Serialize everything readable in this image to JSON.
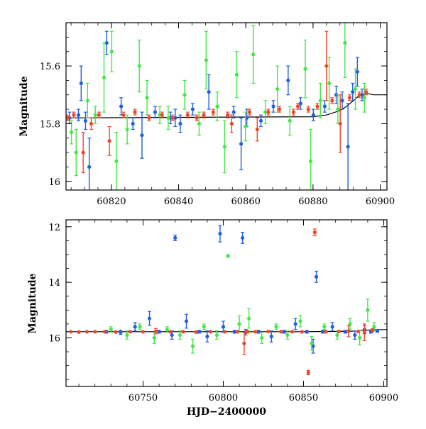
{
  "colors": {
    "blue": "#1f5fe0",
    "red": "#f0452d",
    "green": "#45e64a",
    "model": "#000000"
  },
  "chart_data": [
    {
      "type": "scatter",
      "panel": "top",
      "xlabel": "",
      "ylabel": "Magnitude",
      "xlim": [
        60806.5,
        60902
      ],
      "ylim": [
        16.03,
        15.45
      ],
      "y_inverted": true,
      "xticks": [
        60820,
        60840,
        60860,
        60880,
        60900
      ],
      "yticks": [
        15.6,
        15.8,
        16
      ],
      "ytick_labels": [
        "15.6",
        "15.8",
        "16"
      ],
      "model_curve": {
        "x": [
          60806.5,
          60880,
          60884,
          60888,
          60890,
          60892,
          60894,
          60896,
          60898,
          60902
        ],
        "y": [
          15.78,
          15.776,
          15.77,
          15.755,
          15.74,
          15.72,
          15.7,
          15.695,
          15.7,
          15.7
        ]
      },
      "series": [
        {
          "color": "blue",
          "x": [
            60807.5,
            60810.2,
            60811.0,
            60812.3,
            60813.4,
            60818.6,
            60822.9,
            60826.4,
            60829.1,
            60833.0,
            60837.6,
            60839.0,
            60840.5,
            60844.2,
            60849.0,
            60856.4,
            60858.6,
            60860.3,
            60864.5,
            60868.2,
            60872.6,
            60876.3,
            60880.1,
            60883.5,
            60886.9,
            60888.7,
            60890.4,
            60891.8,
            60893.2,
            60894.6
          ],
          "y": [
            15.78,
            15.77,
            15.66,
            15.79,
            15.95,
            15.52,
            15.74,
            15.8,
            15.84,
            15.76,
            15.78,
            15.78,
            15.8,
            15.75,
            15.69,
            15.76,
            15.87,
            15.78,
            15.79,
            15.74,
            15.65,
            15.73,
            15.77,
            15.74,
            15.7,
            15.72,
            15.88,
            15.69,
            15.62,
            15.7
          ],
          "err": [
            0.02,
            0.02,
            0.06,
            0.03,
            0.1,
            0.04,
            0.03,
            0.02,
            0.08,
            0.02,
            0.02,
            0.03,
            0.03,
            0.02,
            0.06,
            0.02,
            0.09,
            0.03,
            0.02,
            0.02,
            0.05,
            0.02,
            0.02,
            0.02,
            0.03,
            0.03,
            0.15,
            0.03,
            0.05,
            0.02
          ]
        },
        {
          "color": "green",
          "x": [
            60808.1,
            60809.5,
            60812.9,
            60815.2,
            60817.8,
            60820.1,
            60821.5,
            60824.7,
            60828.3,
            60830.6,
            60834.4,
            60836.9,
            60841.8,
            60846.1,
            60848.2,
            60851.5,
            60853.7,
            60857.3,
            60859.9,
            60862.2,
            60865.8,
            60869.4,
            60873.1,
            60877.7,
            60879.3,
            60882.2,
            60884.8,
            60887.4,
            60889.5,
            60892.6,
            60895.3
          ],
          "y": [
            15.83,
            15.9,
            15.72,
            15.77,
            15.64,
            15.55,
            15.93,
            15.82,
            15.6,
            15.71,
            15.77,
            15.78,
            15.7,
            15.8,
            15.58,
            15.74,
            15.88,
            15.63,
            15.81,
            15.56,
            15.76,
            15.68,
            15.79,
            15.61,
            15.93,
            15.72,
            15.66,
            15.75,
            15.52,
            15.68,
            15.71
          ],
          "err": [
            0.04,
            0.08,
            0.06,
            0.03,
            0.12,
            0.07,
            0.1,
            0.05,
            0.09,
            0.06,
            0.03,
            0.04,
            0.05,
            0.04,
            0.1,
            0.05,
            0.09,
            0.08,
            0.05,
            0.1,
            0.04,
            0.08,
            0.05,
            0.1,
            0.11,
            0.06,
            0.09,
            0.05,
            0.12,
            0.07,
            0.05
          ]
        },
        {
          "color": "red",
          "x": [
            60807.0,
            60808.8,
            60811.6,
            60814.0,
            60816.3,
            60819.4,
            60823.6,
            60827.0,
            60831.2,
            60835.1,
            60838.2,
            60842.7,
            60845.4,
            60847.5,
            60850.3,
            60854.6,
            60855.8,
            60861.1,
            60863.4,
            60866.7,
            60870.0,
            60874.2,
            60875.5,
            60878.6,
            60881.3,
            60884.0,
            60885.7,
            60888.1,
            60890.9,
            60893.8,
            60895.8
          ],
          "y": [
            15.78,
            15.77,
            15.9,
            15.8,
            15.77,
            15.86,
            15.77,
            15.76,
            15.78,
            15.77,
            15.78,
            15.77,
            15.78,
            15.77,
            15.76,
            15.77,
            15.8,
            15.76,
            15.82,
            15.76,
            15.75,
            15.76,
            15.74,
            15.75,
            15.74,
            15.6,
            15.72,
            15.8,
            15.71,
            15.7,
            15.69
          ],
          "err": [
            0.01,
            0.01,
            0.07,
            0.02,
            0.01,
            0.05,
            0.01,
            0.01,
            0.01,
            0.01,
            0.01,
            0.01,
            0.01,
            0.01,
            0.01,
            0.01,
            0.03,
            0.01,
            0.04,
            0.01,
            0.01,
            0.01,
            0.01,
            0.01,
            0.01,
            0.12,
            0.01,
            0.1,
            0.01,
            0.01,
            0.01
          ]
        }
      ]
    },
    {
      "type": "scatter",
      "panel": "bottom",
      "xlabel": "HJD−2400000",
      "ylabel": "Magnitude",
      "xlim": [
        60702,
        60902
      ],
      "ylim": [
        17.75,
        11.75
      ],
      "y_inverted": true,
      "xticks": [
        60750,
        60800,
        60850,
        60900
      ],
      "yticks": [
        12,
        14,
        16
      ],
      "ytick_labels": [
        "12",
        "14",
        "16"
      ],
      "model_curve": {
        "x": [
          60702,
          60850,
          60870,
          60880,
          60890,
          60902
        ],
        "y": [
          15.78,
          15.78,
          15.77,
          15.76,
          15.72,
          15.7
        ]
      },
      "series": [
        {
          "color": "blue",
          "x": [
            60727.0,
            60736.0,
            60745.0,
            60754.0,
            60760.0,
            60768.0,
            60770.0,
            60777.0,
            60785.0,
            60790.0,
            60798.0,
            60800.0,
            60807.0,
            60812.0,
            60814.0,
            60822.0,
            60830.0,
            60838.0,
            60845.0,
            60852.0,
            60856.0,
            60858.0,
            60862.0,
            60868.0,
            60876.0,
            60882.0,
            60888.0,
            60892.0,
            60896.0
          ],
          "y": [
            15.78,
            15.8,
            15.6,
            15.3,
            15.78,
            15.9,
            12.4,
            15.4,
            15.78,
            15.95,
            12.25,
            15.6,
            15.78,
            12.4,
            15.8,
            15.78,
            15.95,
            15.78,
            15.5,
            15.78,
            16.3,
            13.8,
            15.78,
            15.6,
            15.78,
            15.9,
            15.7,
            15.78,
            15.75
          ],
          "err": [
            0.05,
            0.08,
            0.15,
            0.25,
            0.05,
            0.15,
            0.1,
            0.25,
            0.05,
            0.2,
            0.3,
            0.2,
            0.05,
            0.2,
            0.1,
            0.05,
            0.2,
            0.05,
            0.2,
            0.05,
            0.25,
            0.2,
            0.05,
            0.15,
            0.05,
            0.15,
            0.15,
            0.05,
            0.05
          ]
        },
        {
          "color": "green",
          "x": [
            60730.0,
            60740.0,
            60748.0,
            60757.0,
            60765.0,
            60773.0,
            60781.0,
            60788.0,
            60796.0,
            60803.0,
            60810.0,
            60816.0,
            60824.0,
            60833.0,
            60840.0,
            60848.0,
            60855.0,
            60863.0,
            60871.0,
            60879.0,
            60885.0,
            60890.0,
            60894.0
          ],
          "y": [
            15.7,
            15.9,
            15.6,
            16.0,
            15.7,
            15.9,
            16.3,
            15.6,
            15.9,
            13.05,
            15.5,
            15.3,
            16.0,
            15.6,
            15.9,
            15.4,
            16.2,
            15.6,
            15.9,
            15.5,
            16.0,
            15.0,
            15.6
          ],
          "err": [
            0.1,
            0.15,
            0.1,
            0.2,
            0.1,
            0.15,
            0.25,
            0.1,
            0.15,
            0.05,
            0.3,
            0.35,
            0.2,
            0.1,
            0.15,
            0.2,
            0.25,
            0.1,
            0.15,
            0.2,
            0.25,
            0.4,
            0.15
          ]
        },
        {
          "color": "red",
          "x": [
            60705.0,
            60710.0,
            60715.0,
            60720.0,
            60726.0,
            60733.0,
            60742.0,
            60750.0,
            60758.0,
            60767.0,
            60775.0,
            60783.0,
            60792.0,
            60801.0,
            60809.0,
            60813.0,
            60815.0,
            60820.0,
            60828.0,
            60836.0,
            60843.0,
            60849.0,
            60853.0,
            60857.0,
            60864.0,
            60872.0,
            60878.0,
            60884.0,
            60888.0,
            60893.0
          ],
          "y": [
            15.78,
            15.79,
            15.78,
            15.78,
            15.78,
            15.79,
            15.78,
            15.78,
            15.76,
            15.78,
            15.78,
            15.79,
            15.78,
            15.78,
            15.78,
            16.2,
            15.78,
            15.78,
            15.77,
            15.78,
            15.78,
            15.78,
            17.25,
            12.2,
            15.78,
            15.77,
            15.76,
            15.77,
            15.8,
            15.72
          ],
          "err": [
            0.01,
            0.01,
            0.01,
            0.01,
            0.02,
            0.02,
            0.02,
            0.02,
            0.1,
            0.02,
            0.02,
            0.02,
            0.02,
            0.02,
            0.02,
            0.4,
            0.05,
            0.02,
            0.02,
            0.02,
            0.02,
            0.02,
            0.08,
            0.12,
            0.02,
            0.02,
            0.2,
            0.02,
            0.3,
            0.05
          ]
        }
      ]
    }
  ]
}
